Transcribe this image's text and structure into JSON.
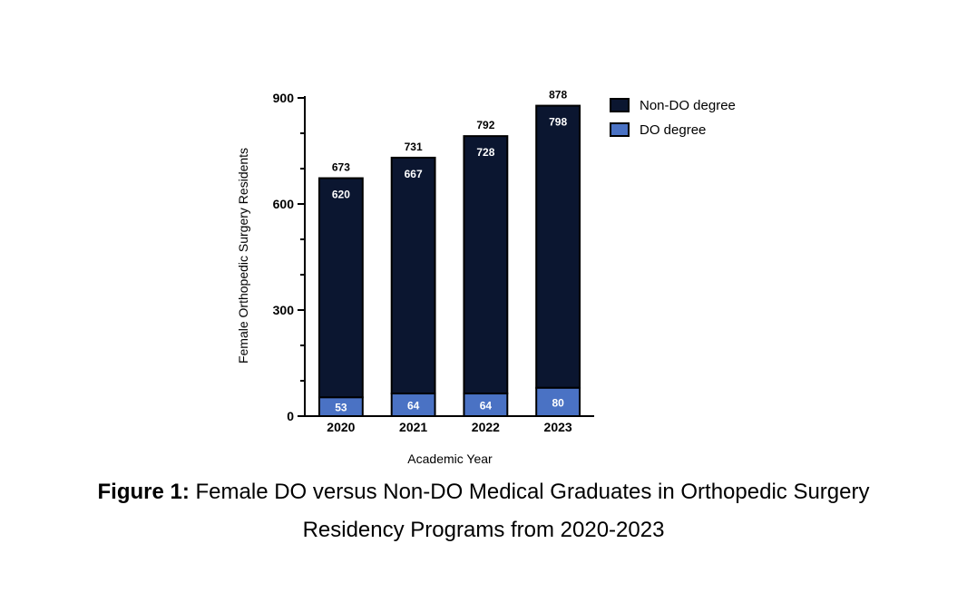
{
  "chart_data": {
    "type": "bar",
    "stacked": true,
    "categories": [
      "2020",
      "2021",
      "2022",
      "2023"
    ],
    "series": [
      {
        "name": "DO degree",
        "values": [
          53,
          64,
          64,
          80
        ],
        "color": "#4a72c4"
      },
      {
        "name": "Non-DO degree",
        "values": [
          620,
          667,
          728,
          798
        ],
        "color": "#0b1630"
      }
    ],
    "totals": [
      673,
      731,
      792,
      878
    ],
    "xlabel": "Academic Year",
    "ylabel": "Female Orthopedic Surgery Residents",
    "ylim": [
      0,
      900
    ],
    "yticks": [
      0,
      300,
      600,
      900
    ],
    "legend_position": "top-right",
    "grid": false
  },
  "caption": {
    "prefix": "Figure 1:",
    "line1": "Female DO versus Non-DO Medical Graduates in Orthopedic Surgery",
    "line2": "Residency Programs from 2020-2023"
  }
}
